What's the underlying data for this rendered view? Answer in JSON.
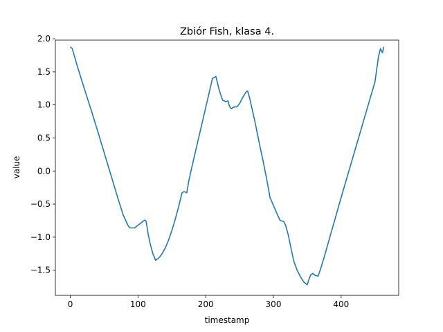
{
  "chart_data": {
    "type": "line",
    "title": "Zbiór Fish, klasa 4.",
    "xlabel": "timestamp",
    "ylabel": "value",
    "xlim": [
      -22,
      485
    ],
    "ylim": [
      -1.88,
      1.98
    ],
    "xticks": [
      0,
      100,
      200,
      300,
      400
    ],
    "yticks": [
      -1.5,
      -1.0,
      -0.5,
      0.0,
      0.5,
      1.0,
      1.5,
      2.0
    ],
    "ytick_labels": [
      "−1.5",
      "−1.0",
      "−0.5",
      "0.0",
      "0.5",
      "1.0",
      "1.5",
      "2.0"
    ],
    "grid": false,
    "color": "#1f77b4",
    "series": [
      {
        "x": [
          0,
          3,
          10,
          20,
          30,
          40,
          50,
          60,
          70,
          78,
          85,
          88,
          95,
          100,
          105,
          110,
          112,
          115,
          118,
          122,
          126,
          130,
          132,
          135,
          140,
          145,
          150,
          155,
          160,
          165,
          168,
          172,
          175,
          180,
          185,
          190,
          195,
          200,
          205,
          210,
          215,
          217,
          220,
          225,
          230,
          233,
          235,
          238,
          240,
          243,
          246,
          250,
          255,
          260,
          262,
          265,
          268,
          272,
          276,
          280,
          285,
          290,
          295,
          300,
          305,
          310,
          315,
          318,
          322,
          325,
          330,
          335,
          340,
          345,
          350,
          352,
          355,
          358,
          362,
          366,
          370,
          375,
          380,
          390,
          400,
          410,
          420,
          430,
          440,
          450,
          455,
          458,
          461,
          463
        ],
        "values": [
          1.88,
          1.85,
          1.6,
          1.27,
          0.95,
          0.62,
          0.28,
          -0.06,
          -0.4,
          -0.66,
          -0.82,
          -0.86,
          -0.86,
          -0.82,
          -0.78,
          -0.74,
          -0.76,
          -0.95,
          -1.1,
          -1.25,
          -1.35,
          -1.32,
          -1.3,
          -1.26,
          -1.17,
          -1.05,
          -0.9,
          -0.73,
          -0.54,
          -0.33,
          -0.31,
          -0.33,
          -0.15,
          0.08,
          0.3,
          0.52,
          0.74,
          0.96,
          1.18,
          1.4,
          1.43,
          1.35,
          1.22,
          1.07,
          1.05,
          1.06,
          0.98,
          0.94,
          0.96,
          0.97,
          0.97,
          1.02,
          1.12,
          1.2,
          1.21,
          1.1,
          0.96,
          0.78,
          0.58,
          0.38,
          0.14,
          -0.12,
          -0.4,
          -0.52,
          -0.64,
          -0.75,
          -0.76,
          -0.82,
          -0.97,
          -1.12,
          -1.36,
          -1.5,
          -1.6,
          -1.68,
          -1.72,
          -1.65,
          -1.57,
          -1.55,
          -1.58,
          -1.59,
          -1.47,
          -1.3,
          -1.12,
          -0.76,
          -0.4,
          -0.05,
          0.3,
          0.65,
          1.0,
          1.35,
          1.72,
          1.85,
          1.79,
          1.88
        ]
      }
    ]
  }
}
